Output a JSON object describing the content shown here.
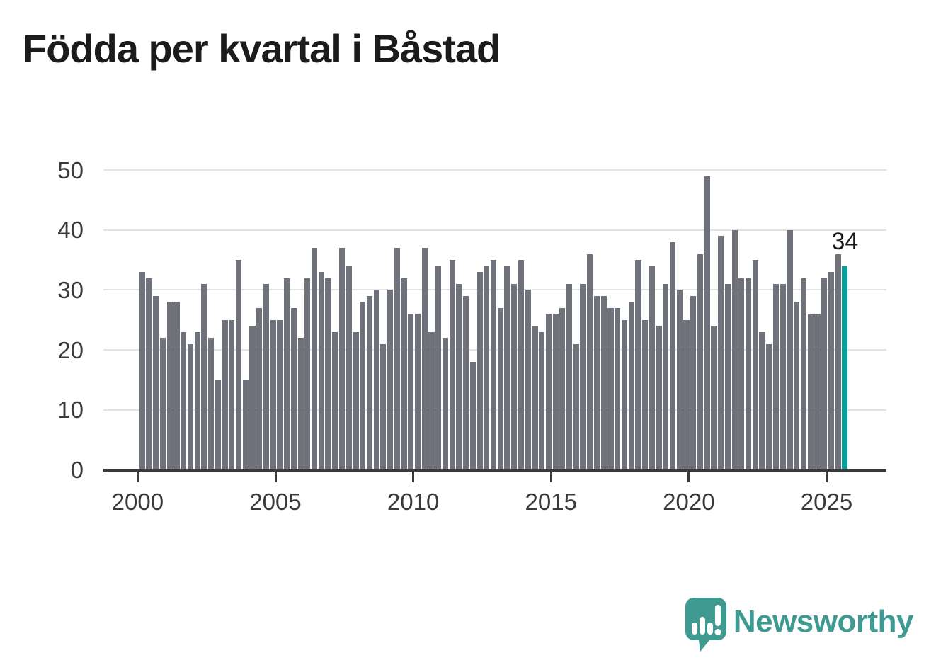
{
  "title": "Födda per kvartal i Båstad",
  "annotation": {
    "last_value_label": "34"
  },
  "branding": {
    "name": "Newsworthy",
    "icon": "newsworthy-speech-bubble-chart-icon"
  },
  "colors": {
    "bar": "#6f727a",
    "highlight": "#0aa09a",
    "logo_teal": "#3f9a92",
    "grid": "#e3e3e3",
    "axis": "#3a3a3e",
    "axis_text": "#3a3a3a",
    "title_text": "#1b1b1b"
  },
  "chart_data": {
    "type": "bar",
    "title": "Födda per kvartal i Båstad",
    "xlabel": "",
    "ylabel": "",
    "ylim": [
      0,
      50
    ],
    "y_ticks": [
      0,
      10,
      20,
      30,
      40,
      50
    ],
    "x_tick_years": [
      2000,
      2005,
      2010,
      2015,
      2020,
      2025
    ],
    "x_tick_labels": [
      "2000",
      "2005",
      "2010",
      "2015",
      "2020",
      "2025"
    ],
    "grid": "horizontal",
    "legend": "none",
    "start_quarter": "2000Q1",
    "end_quarter": "2025Q3",
    "highlight_last_bar": true,
    "last_bar_label": "34",
    "values": [
      33,
      32,
      29,
      22,
      28,
      28,
      23,
      21,
      23,
      31,
      22,
      15,
      25,
      25,
      35,
      15,
      24,
      27,
      31,
      25,
      25,
      32,
      27,
      22,
      32,
      37,
      33,
      32,
      23,
      37,
      34,
      23,
      28,
      29,
      30,
      21,
      30,
      37,
      32,
      26,
      26,
      37,
      23,
      34,
      22,
      35,
      31,
      29,
      18,
      33,
      34,
      35,
      27,
      34,
      31,
      35,
      30,
      24,
      23,
      26,
      26,
      27,
      31,
      21,
      31,
      36,
      29,
      29,
      27,
      27,
      25,
      28,
      35,
      25,
      34,
      24,
      31,
      38,
      30,
      25,
      29,
      36,
      49,
      24,
      39,
      31,
      40,
      32,
      32,
      35,
      23,
      21,
      31,
      31,
      40,
      28,
      32,
      26,
      26,
      32,
      33,
      36,
      34
    ]
  }
}
